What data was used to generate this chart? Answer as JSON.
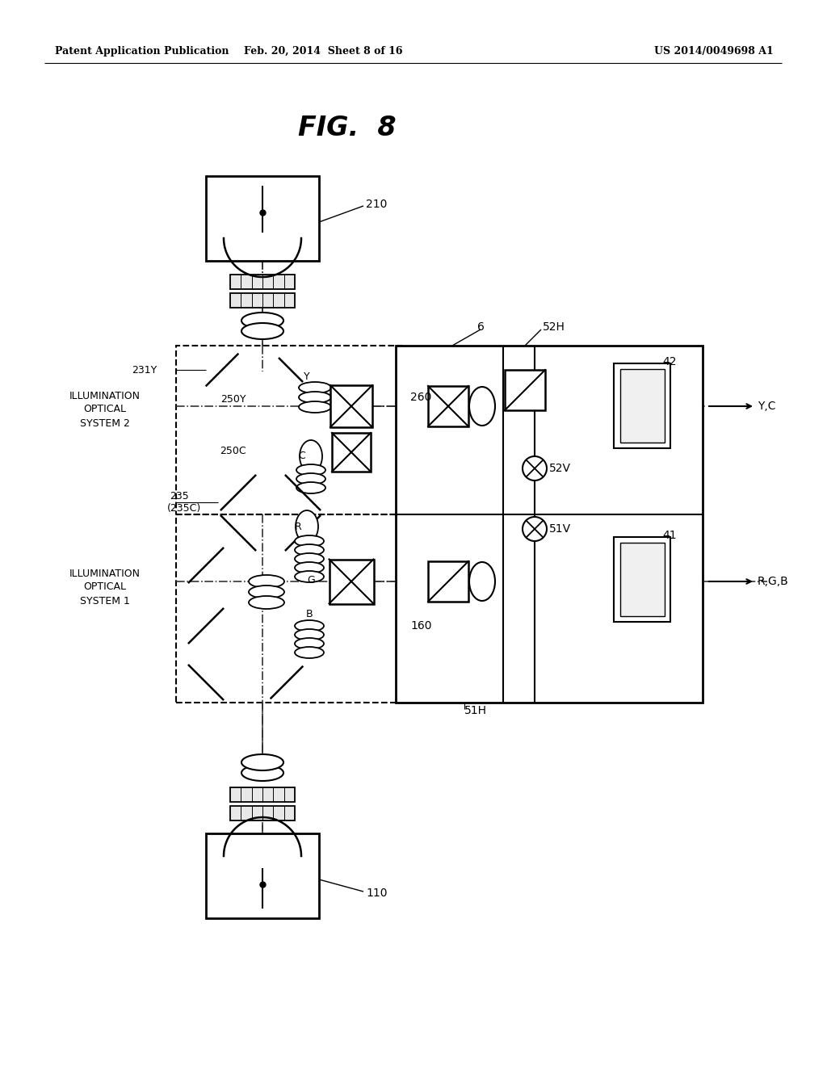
{
  "title": "FIG.  8",
  "header_left": "Patent Application Publication",
  "header_center": "Feb. 20, 2014  Sheet 8 of 16",
  "header_right": "US 2014/0049698 A1",
  "bg_color": "#ffffff"
}
